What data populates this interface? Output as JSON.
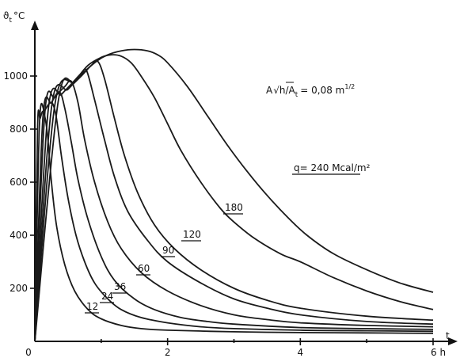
{
  "chart_data": {
    "type": "line",
    "ylabel": "ϑ",
    "ylabel_sub": "t",
    "ylabel_unit": "°C",
    "xlabel": "t",
    "x_ticks": [
      "0",
      "2",
      "4",
      "6 h"
    ],
    "y_ticks": [
      "200",
      "400",
      "600",
      "800",
      "1000"
    ],
    "xlim": [
      0,
      6
    ],
    "ylim": [
      0,
      1150
    ],
    "annotation": {
      "prefix": "A",
      "sqrt_text": "h",
      "sub": "t",
      "value": "= 0,08 m",
      "exp": "1/2"
    },
    "series": [
      {
        "name": "12",
        "x": [
          0.04,
          0.08,
          0.13,
          0.19,
          0.25,
          0.33,
          0.45,
          0.6,
          0.8,
          1.0,
          1.3,
          1.6,
          2.0,
          3.0,
          4.0,
          5.0,
          6.0
        ],
        "y": [
          800,
          840,
          865,
          780,
          600,
          430,
          290,
          190,
          120,
          85,
          60,
          48,
          42,
          36,
          33,
          32,
          30
        ]
      },
      {
        "name": "24",
        "x": [
          0.07,
          0.15,
          0.25,
          0.32,
          0.4,
          0.5,
          0.62,
          0.75,
          0.9,
          1.1,
          1.3,
          1.6,
          2.0,
          2.5,
          3.0,
          4.0,
          5.0,
          6.0
        ],
        "y": [
          820,
          870,
          900,
          850,
          700,
          540,
          400,
          300,
          220,
          160,
          120,
          90,
          70,
          55,
          48,
          42,
          40,
          38
        ]
      },
      {
        "name": "36",
        "x": [
          0.12,
          0.25,
          0.37,
          0.45,
          0.55,
          0.65,
          0.8,
          1.0,
          1.2,
          1.5,
          1.8,
          2.2,
          2.6,
          3.0,
          4.0,
          5.0,
          6.0
        ],
        "y": [
          840,
          900,
          940,
          880,
          750,
          610,
          460,
          320,
          230,
          160,
          120,
          90,
          75,
          65,
          52,
          48,
          45
        ]
      },
      {
        "name": "60",
        "x": [
          0.15,
          0.3,
          0.45,
          0.55,
          0.65,
          0.75,
          0.9,
          1.1,
          1.3,
          1.6,
          2.0,
          2.5,
          3.0,
          3.5,
          4.0,
          5.0,
          6.0
        ],
        "y": [
          860,
          920,
          960,
          980,
          900,
          760,
          600,
          450,
          350,
          260,
          190,
          135,
          100,
          82,
          70,
          60,
          55
        ]
      },
      {
        "name": "90",
        "x": [
          0.2,
          0.4,
          0.55,
          0.7,
          0.78,
          0.9,
          1.05,
          1.2,
          1.4,
          1.7,
          2.0,
          2.5,
          3.0,
          3.5,
          4.0,
          5.0,
          6.0
        ],
        "y": [
          870,
          930,
          970,
          1010,
          1020,
          910,
          760,
          620,
          490,
          380,
          300,
          220,
          160,
          125,
          100,
          75,
          65
        ]
      },
      {
        "name": "120",
        "x": [
          0.25,
          0.5,
          0.7,
          0.85,
          0.95,
          1.05,
          1.2,
          1.35,
          1.55,
          1.8,
          2.1,
          2.5,
          3.0,
          3.5,
          4.0,
          5.0,
          6.0
        ],
        "y": [
          880,
          950,
          1000,
          1040,
          1055,
          990,
          840,
          700,
          560,
          440,
          350,
          270,
          200,
          155,
          125,
          95,
          80
        ]
      },
      {
        "name": "180",
        "x": [
          0.3,
          0.6,
          0.8,
          1.0,
          1.15,
          1.3,
          1.45,
          1.6,
          1.8,
          2.0,
          2.2,
          2.5,
          2.8,
          3.0,
          3.3,
          3.7,
          4.0,
          4.5,
          5.0,
          5.5,
          6.0
        ],
        "y": [
          890,
          980,
          1040,
          1070,
          1080,
          1075,
          1050,
          1000,
          920,
          820,
          720,
          600,
          500,
          450,
          390,
          330,
          300,
          240,
          190,
          150,
          120
        ]
      },
      {
        "name": "q= 240 Mcal/m²",
        "x": [
          0.35,
          0.6,
          0.9,
          1.1,
          1.3,
          1.5,
          1.7,
          1.85,
          2.0,
          2.3,
          2.6,
          2.9,
          3.2,
          3.5,
          3.8,
          4.1,
          4.5,
          5.0,
          5.5,
          6.0
        ],
        "y": [
          900,
          980,
          1050,
          1080,
          1095,
          1100,
          1095,
          1080,
          1050,
          960,
          850,
          740,
          640,
          550,
          470,
          400,
          330,
          270,
          220,
          185
        ]
      }
    ]
  }
}
